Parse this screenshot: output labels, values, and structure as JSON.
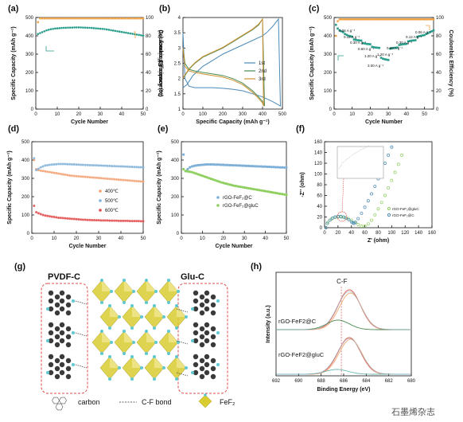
{
  "chart_data": [
    {
      "id": "a",
      "panel_label": "(a)",
      "type": "scatter",
      "xlabel": "Cycle Number",
      "ylabel": "Specific Capacity (mAh g⁻¹)",
      "y2label": "Coulombic Efficiency (%)",
      "xlim": [
        0,
        50
      ],
      "ylim": [
        0,
        500
      ],
      "y2lim": [
        0,
        100
      ],
      "xticks": [
        0,
        10,
        20,
        30,
        40,
        50
      ],
      "yticks": [
        0,
        100,
        200,
        300,
        400,
        500
      ],
      "y2ticks": [
        0,
        20,
        40,
        60,
        80,
        100
      ],
      "series": [
        {
          "axis": "y",
          "color": "#2a9e8c",
          "values": [
            410,
            415,
            420,
            425,
            430,
            433,
            436,
            438,
            440,
            441,
            442,
            443,
            444,
            444,
            445,
            445,
            445,
            446,
            446,
            446,
            446,
            445,
            445,
            444,
            444,
            443,
            442,
            441,
            440,
            439,
            438,
            437,
            435,
            433,
            431,
            429,
            427,
            425,
            423,
            421,
            419,
            417,
            415,
            413,
            411,
            409,
            407,
            405,
            403,
            401
          ]
        },
        {
          "axis": "y2",
          "color": "#f0a040",
          "values": [
            95,
            99,
            99,
            99,
            99,
            99,
            99,
            99,
            99,
            99,
            99,
            99,
            99,
            99,
            99,
            99,
            99,
            99,
            99,
            99,
            99,
            99,
            99,
            99,
            99,
            99,
            99,
            99,
            99,
            99,
            99,
            99,
            99,
            99,
            99,
            99,
            99,
            99,
            99,
            99,
            99,
            99,
            99,
            99,
            99,
            99,
            99,
            99,
            99,
            99
          ]
        }
      ]
    },
    {
      "id": "b",
      "panel_label": "(b)",
      "type": "line",
      "xlabel": "Specific Capacity (mAh g⁻¹)",
      "ylabel": "Coulombic Efficiency (%)",
      "xlim": [
        0,
        500
      ],
      "ylim": [
        1.0,
        4.0
      ],
      "xticks": [
        0,
        100,
        200,
        300,
        400,
        500
      ],
      "yticks": [
        1.0,
        1.5,
        2.0,
        2.5,
        3.0,
        3.5,
        4.0
      ],
      "legend": [
        "1st",
        "2nd",
        "3rd"
      ],
      "series": [
        {
          "name": "1st",
          "color": "#4a8ab8",
          "x": [
            0,
            10,
            30,
            60,
            100,
            150,
            200,
            250,
            300,
            350,
            400,
            450,
            490,
            480,
            450,
            420,
            400,
            350,
            300,
            250,
            200,
            150,
            100,
            50,
            20,
            0
          ],
          "y": [
            3.5,
            2.0,
            1.75,
            1.7,
            1.7,
            1.7,
            1.68,
            1.65,
            1.6,
            1.5,
            1.4,
            1.25,
            1.1,
            3.95,
            3.7,
            3.5,
            3.4,
            3.25,
            3.1,
            2.95,
            2.8,
            2.6,
            2.4,
            2.1,
            1.8,
            1.7
          ]
        },
        {
          "name": "2nd",
          "color": "#4a8a50",
          "x": [
            0,
            10,
            30,
            60,
            100,
            150,
            200,
            250,
            300,
            350,
            380,
            400,
            410,
            400,
            380,
            350,
            300,
            250,
            200,
            150,
            100,
            60,
            30,
            10,
            0
          ],
          "y": [
            3.0,
            2.5,
            2.3,
            2.25,
            2.2,
            2.15,
            2.1,
            2.0,
            1.85,
            1.6,
            1.4,
            1.25,
            1.1,
            3.95,
            3.75,
            3.6,
            3.4,
            3.2,
            3.0,
            2.85,
            2.7,
            2.5,
            2.3,
            2.1,
            2.0
          ]
        },
        {
          "name": "3rd",
          "color": "#d09030",
          "x": [
            0,
            10,
            30,
            60,
            100,
            150,
            200,
            250,
            300,
            350,
            380,
            400,
            405,
            400,
            380,
            350,
            300,
            250,
            200,
            150,
            100,
            60,
            30,
            10,
            0
          ],
          "y": [
            3.0,
            2.4,
            2.25,
            2.2,
            2.15,
            2.1,
            2.05,
            1.95,
            1.8,
            1.55,
            1.35,
            1.2,
            1.1,
            3.95,
            3.78,
            3.62,
            3.42,
            3.22,
            3.02,
            2.87,
            2.72,
            2.52,
            2.32,
            2.12,
            2.0
          ]
        }
      ]
    },
    {
      "id": "c",
      "panel_label": "(c)",
      "type": "scatter",
      "xlabel": "Cycle Number",
      "ylabel": "Specific Capacity (mAh g⁻¹)",
      "y2label": "Coulombic Efficiency (%)",
      "xlim": [
        0,
        55
      ],
      "ylim": [
        0,
        500
      ],
      "y2lim": [
        0,
        100
      ],
      "xticks": [
        0,
        10,
        20,
        30,
        40,
        50
      ],
      "yticks": [
        0,
        100,
        200,
        300,
        400,
        500
      ],
      "y2ticks": [
        0,
        20,
        40,
        60,
        80,
        100
      ],
      "annotations": [
        "0.06 A g⁻¹",
        "0.12 A g⁻¹",
        "0.30 A g⁻¹",
        "0.60 A g⁻¹",
        "1.20 A g⁻¹",
        "3.00 A g⁻¹",
        "1.20 A g⁻¹",
        "0.60 A g⁻¹",
        "0.30 A g⁻¹",
        "0.12 A g⁻¹",
        "0.06 A g⁻¹"
      ],
      "series": [
        {
          "axis": "y",
          "color": "#2a9e8c",
          "values": [
            460,
            440,
            430,
            425,
            420,
            410,
            405,
            400,
            398,
            395,
            380,
            378,
            376,
            375,
            374,
            360,
            358,
            356,
            355,
            354,
            340,
            338,
            336,
            335,
            334,
            280,
            275,
            272,
            270,
            268,
            330,
            332,
            334,
            335,
            336,
            350,
            352,
            354,
            355,
            356,
            370,
            372,
            374,
            375,
            376,
            395,
            398,
            400,
            402,
            404,
            410,
            415,
            420,
            425,
            430
          ]
        },
        {
          "axis": "y2",
          "color": "#f0a040",
          "values": [
            80,
            96,
            98,
            98,
            98,
            98,
            98,
            98,
            98,
            98,
            98,
            98,
            98,
            98,
            98,
            98,
            98,
            98,
            98,
            98,
            98,
            98,
            98,
            98,
            98,
            98,
            98,
            98,
            98,
            98,
            98,
            98,
            98,
            98,
            98,
            98,
            98,
            98,
            98,
            98,
            98,
            98,
            98,
            98,
            98,
            98,
            98,
            98,
            98,
            98,
            98,
            98,
            98,
            98,
            98
          ]
        }
      ]
    },
    {
      "id": "d",
      "panel_label": "(d)",
      "type": "scatter",
      "xlabel": "Cycle Number",
      "ylabel": "Specific Capacity (mAh g⁻¹)",
      "xlim": [
        0,
        50
      ],
      "ylim": [
        0,
        500
      ],
      "xticks": [
        0,
        10,
        20,
        30,
        40,
        50
      ],
      "yticks": [
        0,
        100,
        200,
        300,
        400,
        500
      ],
      "legend": [
        "400℃",
        "500℃",
        "600℃"
      ],
      "series": [
        {
          "name": "400℃",
          "color": "#f2a070",
          "values": [
            400,
            350,
            345,
            342,
            340,
            338,
            336,
            334,
            332,
            330,
            328,
            326,
            324,
            322,
            320,
            318,
            316,
            314,
            313,
            312,
            311,
            310,
            309,
            308,
            307,
            306,
            305,
            304,
            303,
            302,
            301,
            300,
            299,
            298,
            297,
            296,
            295,
            294,
            293,
            292,
            291,
            290,
            289,
            288,
            287,
            286,
            285,
            284,
            283,
            282
          ]
        },
        {
          "name": "500℃",
          "color": "#7fb0d8",
          "values": [
            410,
            345,
            352,
            360,
            365,
            370,
            372,
            374,
            375,
            376,
            377,
            378,
            378,
            378,
            378,
            377,
            377,
            376,
            376,
            375,
            375,
            374,
            374,
            373,
            373,
            372,
            372,
            371,
            371,
            370,
            370,
            369,
            369,
            368,
            368,
            367,
            367,
            366,
            366,
            365,
            365,
            364,
            364,
            363,
            363,
            362,
            362,
            361,
            361,
            360
          ]
        },
        {
          "name": "600℃",
          "color": "#e04848",
          "values": [
            150,
            115,
            110,
            105,
            100,
            97,
            95,
            93,
            91,
            89,
            87,
            85,
            84,
            83,
            82,
            81,
            80,
            79,
            78,
            77,
            76,
            75,
            74,
            74,
            73,
            73,
            72,
            72,
            71,
            71,
            70,
            70,
            70,
            70,
            69,
            69,
            69,
            69,
            68,
            68,
            68,
            68,
            68,
            67,
            67,
            67,
            67,
            67,
            66,
            66
          ]
        }
      ]
    },
    {
      "id": "e",
      "panel_label": "(e)",
      "type": "scatter",
      "xlabel": "Cycle Number",
      "ylabel": "Specific Capacity (mAh g⁻¹)",
      "xlim": [
        0,
        50
      ],
      "ylim": [
        0,
        500
      ],
      "xticks": [
        0,
        10,
        20,
        30,
        40,
        50
      ],
      "yticks": [
        0,
        100,
        200,
        300,
        400,
        500
      ],
      "legend": [
        "rGO-FeF₂@C",
        "rGO-FeF₂@gluC"
      ],
      "series": [
        {
          "name": "rGO-FeF₂@C",
          "color": "#7fb0d8",
          "values": [
            430,
            340,
            350,
            360,
            365,
            368,
            370,
            372,
            373,
            374,
            375,
            376,
            376,
            376,
            376,
            375,
            375,
            375,
            374,
            374,
            373,
            373,
            372,
            372,
            371,
            371,
            370,
            370,
            369,
            369,
            368,
            368,
            367,
            367,
            366,
            366,
            365,
            365,
            364,
            364,
            363,
            363,
            362,
            362,
            361,
            361,
            360,
            360,
            359,
            359
          ]
        },
        {
          "name": "rGO-FeF₂@gluC",
          "color": "#8fcf60",
          "values": [
            350,
            340,
            338,
            336,
            334,
            330,
            326,
            322,
            318,
            314,
            310,
            306,
            302,
            298,
            294,
            290,
            286,
            282,
            278,
            275,
            272,
            269,
            266,
            263,
            260,
            258,
            256,
            254,
            252,
            250,
            248,
            246,
            244,
            242,
            240,
            238,
            236,
            234,
            232,
            230,
            228,
            226,
            224,
            222,
            220,
            218,
            216,
            214,
            212,
            210
          ]
        }
      ]
    },
    {
      "id": "f",
      "panel_label": "(f)",
      "type": "scatter",
      "xlabel": "Z' (ohm)",
      "ylabel": "-Z'' (ohm)",
      "xlim": [
        0,
        160
      ],
      "ylim": [
        0,
        160
      ],
      "xticks": [
        0,
        20,
        40,
        60,
        80,
        100,
        120,
        140,
        160
      ],
      "yticks": [
        0,
        20,
        40,
        60,
        80,
        100,
        120,
        140,
        160
      ],
      "legend": [
        "rGO-FeF₂@gluC",
        "rGO-FeF₂@C"
      ],
      "series": [
        {
          "name": "rGO-FeF₂@gluC",
          "color": "#8fcf60",
          "x": [
            2,
            5,
            10,
            15,
            20,
            25,
            30,
            35,
            40,
            45,
            50,
            55,
            60,
            65,
            70,
            75,
            80,
            85,
            90,
            95,
            100,
            105,
            110,
            115
          ],
          "y": [
            0,
            10,
            16,
            19,
            20,
            20,
            19,
            17,
            14,
            10,
            6,
            3,
            3,
            7,
            14,
            24,
            35,
            47,
            60,
            74,
            88,
            103,
            118,
            135
          ]
        },
        {
          "name": "rGO-FeF₂@C",
          "color": "#4a8ab8",
          "x": [
            2,
            4,
            8,
            12,
            16,
            20,
            24,
            28,
            32,
            36,
            40,
            42,
            44,
            46,
            50,
            55,
            60,
            65,
            70,
            75,
            80,
            85,
            90,
            95,
            100
          ],
          "y": [
            0,
            8,
            14,
            18,
            20,
            21,
            21,
            20,
            18,
            15,
            11,
            9,
            8,
            10,
            17,
            27,
            38,
            50,
            63,
            77,
            91,
            105,
            120,
            135,
            150
          ]
        }
      ]
    },
    {
      "id": "h",
      "panel_label": "(h)",
      "type": "line",
      "xlabel": "Binding Energy (eV)",
      "ylabel": "Intensity (a.u.)",
      "xlim": [
        692,
        680
      ],
      "xticks": [
        692,
        690,
        688,
        686,
        684,
        682,
        680
      ],
      "annotation": "C-F",
      "curve_labels": [
        "rGO-FeF2@C",
        "rGO-FeF2@gluC"
      ]
    }
  ],
  "panel_g": {
    "panel_label": "(g)",
    "left_label": "PVDF-C",
    "right_label": "Glu-C",
    "legend_carbon": "carbon",
    "legend_bond": "C-F bond",
    "legend_fef2": "FeF₂",
    "colors": {
      "carbon": "#3a3a3a",
      "fluorine": "#5fc8d0",
      "octahedron": "#d8cc30",
      "box": "#e04848"
    }
  },
  "watermark": "石墨烯杂志"
}
